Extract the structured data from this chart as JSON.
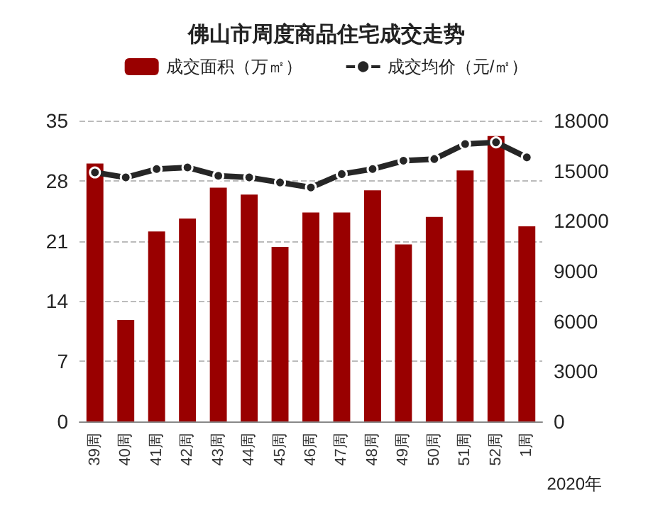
{
  "chart_data": {
    "type": "bar",
    "title": "佛山市周度商品住宅成交走势",
    "categories": [
      "39周",
      "40周",
      "41周",
      "42周",
      "43周",
      "44周",
      "45周",
      "46周",
      "47周",
      "48周",
      "49周",
      "50周",
      "51周",
      "52周",
      "1周"
    ],
    "series": [
      {
        "name": "成交面积（万㎡）",
        "color": "#990000",
        "values": [
          30,
          11.8,
          22.1,
          23.6,
          27.2,
          26.4,
          20.3,
          24.3,
          24.3,
          26.9,
          20.6,
          23.8,
          29.2,
          33.2,
          22.7
        ]
      },
      {
        "name": "成交均价（元/㎡）",
        "type": "line",
        "axis": "y2",
        "color": "#262626",
        "marker": "circle",
        "values": [
          14900,
          14600,
          15100,
          15200,
          14700,
          14600,
          14300,
          14000,
          14800,
          15100,
          15600,
          15700,
          16600,
          16700,
          15800
        ]
      }
    ],
    "ylim": [
      0,
      35
    ],
    "yticks": [
      0,
      7,
      14,
      21,
      28,
      35
    ],
    "y2lim": [
      0,
      18000
    ],
    "y2ticks": [
      0,
      3000,
      6000,
      9000,
      12000,
      15000,
      18000
    ],
    "grid": "y",
    "legend": "top",
    "annotations": [
      "2020年"
    ]
  }
}
